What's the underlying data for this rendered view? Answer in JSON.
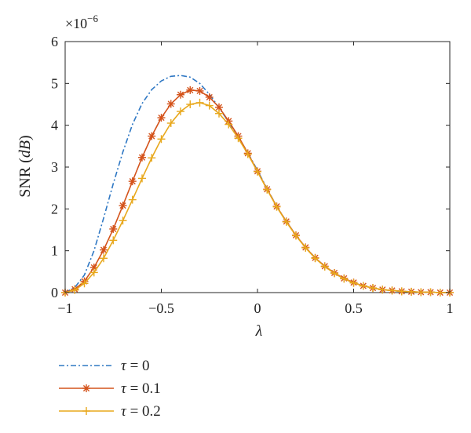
{
  "chart_data": {
    "type": "line",
    "xlabel": "λ",
    "ylabel_text": "SNR (",
    "ylabel_unit": "dB",
    "ylabel_close": ")",
    "y_multiplier_base": "×10",
    "y_multiplier_exp": "−6",
    "xlim": [
      -1,
      1
    ],
    "ylim": [
      0,
      6
    ],
    "x_ticks": [
      -1,
      -0.5,
      0,
      0.5,
      1
    ],
    "x_tick_labels": [
      "−1",
      "−0.5",
      "0",
      "0.5",
      "1"
    ],
    "y_ticks": [
      0,
      1,
      2,
      3,
      4,
      5,
      6
    ],
    "y_tick_labels": [
      "0",
      "1",
      "2",
      "3",
      "4",
      "5",
      "6"
    ],
    "grid": false,
    "legend_position": "bottom-left, below axes",
    "series": [
      {
        "name": "τ = 0",
        "color": "#2f78c4",
        "style": "dash-dot",
        "marker": "none",
        "x": [
          -1,
          -0.95,
          -0.9,
          -0.85,
          -0.8,
          -0.75,
          -0.7,
          -0.65,
          -0.6,
          -0.55,
          -0.5,
          -0.45,
          -0.4,
          -0.35,
          -0.3,
          -0.25,
          -0.2,
          -0.15,
          -0.1,
          -0.05,
          0,
          0.05,
          0.1,
          0.15,
          0.2,
          0.25,
          0.3,
          0.35,
          0.4,
          0.45,
          0.5,
          0.55,
          0.6,
          0.65,
          0.7,
          0.75,
          0.8,
          0.85,
          0.9,
          0.95,
          1
        ],
        "y": [
          0,
          0.12,
          0.42,
          1.0,
          1.78,
          2.6,
          3.36,
          4.02,
          4.52,
          4.85,
          5.06,
          5.17,
          5.19,
          5.15,
          5.0,
          4.74,
          4.42,
          4.08,
          3.72,
          3.34,
          2.92,
          2.48,
          2.06,
          1.7,
          1.37,
          1.08,
          0.83,
          0.63,
          0.46,
          0.33,
          0.23,
          0.16,
          0.11,
          0.07,
          0.05,
          0.03,
          0.02,
          0.01,
          0.01,
          0.0,
          0.0
        ]
      },
      {
        "name": "τ = 0.1",
        "color": "#d4531b",
        "style": "solid",
        "marker": "asterisk",
        "x": [
          -1,
          -0.95,
          -0.9,
          -0.85,
          -0.8,
          -0.75,
          -0.7,
          -0.65,
          -0.6,
          -0.55,
          -0.5,
          -0.45,
          -0.4,
          -0.35,
          -0.3,
          -0.25,
          -0.2,
          -0.15,
          -0.1,
          -0.05,
          0,
          0.05,
          0.1,
          0.15,
          0.2,
          0.25,
          0.3,
          0.35,
          0.4,
          0.45,
          0.5,
          0.55,
          0.6,
          0.65,
          0.7,
          0.75,
          0.8,
          0.85,
          0.9,
          0.95,
          1
        ],
        "y": [
          0,
          0.08,
          0.27,
          0.6,
          1.02,
          1.52,
          2.08,
          2.66,
          3.23,
          3.74,
          4.18,
          4.51,
          4.73,
          4.84,
          4.82,
          4.67,
          4.43,
          4.1,
          3.74,
          3.33,
          2.9,
          2.47,
          2.06,
          1.7,
          1.37,
          1.08,
          0.83,
          0.63,
          0.47,
          0.34,
          0.24,
          0.16,
          0.11,
          0.07,
          0.05,
          0.03,
          0.02,
          0.01,
          0.01,
          0.0,
          0.0
        ]
      },
      {
        "name": "τ = 0.2",
        "color": "#e8a81c",
        "style": "solid",
        "marker": "plus",
        "x": [
          -1,
          -0.95,
          -0.9,
          -0.85,
          -0.8,
          -0.75,
          -0.7,
          -0.65,
          -0.6,
          -0.55,
          -0.5,
          -0.45,
          -0.4,
          -0.35,
          -0.3,
          -0.25,
          -0.2,
          -0.15,
          -0.1,
          -0.05,
          0,
          0.05,
          0.1,
          0.15,
          0.2,
          0.25,
          0.3,
          0.35,
          0.4,
          0.45,
          0.5,
          0.55,
          0.6,
          0.65,
          0.7,
          0.75,
          0.8,
          0.85,
          0.9,
          0.95,
          1
        ],
        "y": [
          0,
          0.06,
          0.22,
          0.48,
          0.82,
          1.25,
          1.72,
          2.22,
          2.73,
          3.22,
          3.67,
          4.05,
          4.33,
          4.5,
          4.54,
          4.47,
          4.28,
          4.02,
          3.69,
          3.31,
          2.89,
          2.46,
          2.05,
          1.69,
          1.36,
          1.07,
          0.82,
          0.62,
          0.46,
          0.33,
          0.23,
          0.16,
          0.11,
          0.07,
          0.05,
          0.03,
          0.02,
          0.01,
          0.01,
          0.0,
          0.0
        ]
      }
    ]
  }
}
